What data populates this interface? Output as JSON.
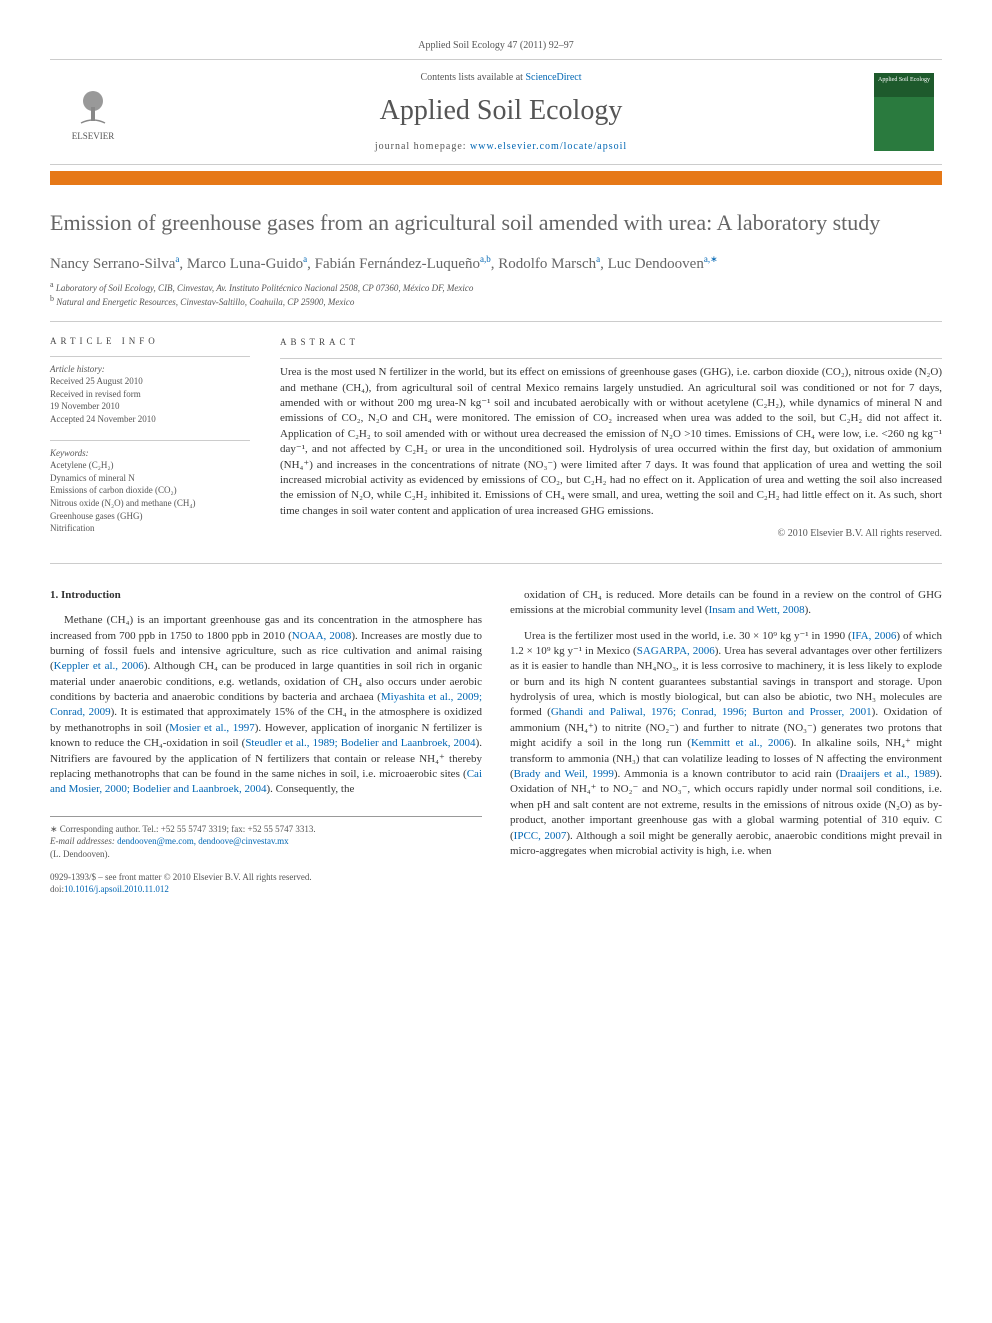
{
  "header": {
    "citation": "Applied Soil Ecology 47 (2011) 92–97"
  },
  "masthead": {
    "contents_prefix": "Contents lists available at ",
    "contents_link": "ScienceDirect",
    "journal": "Applied Soil Ecology",
    "homepage_prefix": "journal homepage: ",
    "homepage_link": "www.elsevier.com/locate/apsoil",
    "publisher_name": "ELSEVIER",
    "cover_label": "Applied Soil Ecology"
  },
  "article": {
    "title": "Emission of greenhouse gases from an agricultural soil amended with urea: A laboratory study",
    "authors_html": "Nancy Serrano-Silva<sup>a</sup>, Marco Luna-Guido<sup>a</sup>, Fabián Fernández-Luqueño<sup>a,b</sup>, Rodolfo Marsch<sup>a</sup>, Luc Dendooven<sup>a,∗</sup>",
    "affiliations": [
      {
        "mark": "a",
        "text": "Laboratory of Soil Ecology, CIB, Cinvestav, Av. Instituto Politécnico Nacional 2508, CP 07360, México DF, Mexico"
      },
      {
        "mark": "b",
        "text": "Natural and Energetic Resources, Cinvestav-Saltillo, Coahuila, CP 25900, Mexico"
      }
    ]
  },
  "info": {
    "label": "ARTICLE INFO",
    "history_label": "Article history:",
    "history": [
      "Received 25 August 2010",
      "Received in revised form",
      "19 November 2010",
      "Accepted 24 November 2010"
    ],
    "keywords_label": "Keywords:",
    "keywords": [
      "Acetylene (C₂H₂)",
      "Dynamics of mineral N",
      "Emissions of carbon dioxide (CO₂)",
      "Nitrous oxide (N₂O) and methane (CH₄)",
      "Greenhouse gases (GHG)",
      "Nitrification"
    ]
  },
  "abstract": {
    "label": "ABSTRACT",
    "text": "Urea is the most used N fertilizer in the world, but its effect on emissions of greenhouse gases (GHG), i.e. carbon dioxide (CO₂), nitrous oxide (N₂O) and methane (CH₄), from agricultural soil of central Mexico remains largely unstudied. An agricultural soil was conditioned or not for 7 days, amended with or without 200 mg urea-N kg⁻¹ soil and incubated aerobically with or without acetylene (C₂H₂), while dynamics of mineral N and emissions of CO₂, N₂O and CH₄ were monitored. The emission of CO₂ increased when urea was added to the soil, but C₂H₂ did not affect it. Application of C₂H₂ to soil amended with or without urea decreased the emission of N₂O >10 times. Emissions of CH₄ were low, i.e. <260 ng kg⁻¹ day⁻¹, and not affected by C₂H₂ or urea in the unconditioned soil. Hydrolysis of urea occurred within the first day, but oxidation of ammonium (NH₄⁺) and increases in the concentrations of nitrate (NO₃⁻) were limited after 7 days. It was found that application of urea and wetting the soil increased microbial activity as evidenced by emissions of CO₂, but C₂H₂ had no effect on it. Application of urea and wetting the soil also increased the emission of N₂O, while C₂H₂ inhibited it. Emissions of CH₄ were small, and urea, wetting the soil and C₂H₂ had little effect on it. As such, short time changes in soil water content and application of urea increased GHG emissions.",
    "copyright": "© 2010 Elsevier B.V. All rights reserved."
  },
  "body": {
    "intro_heading": "1. Introduction",
    "col1_p1_html": "Methane (CH₄) is an important greenhouse gas and its concentration in the atmosphere has increased from 700 ppb in 1750 to 1800 ppb in 2010 (<a href='#'>NOAA, 2008</a>). Increases are mostly due to burning of fossil fuels and intensive agriculture, such as rice cultivation and animal raising (<a href='#'>Keppler et al., 2006</a>). Although CH₄ can be produced in large quantities in soil rich in organic material under anaerobic conditions, e.g. wetlands, oxidation of CH₄ also occurs under aerobic conditions by bacteria and anaerobic conditions by bacteria and archaea (<a href='#'>Miyashita et al., 2009; Conrad, 2009</a>). It is estimated that approximately 15% of the CH₄ in the atmosphere is oxidized by methanotrophs in soil (<a href='#'>Mosier et al., 1997</a>). However, application of inorganic N fertilizer is known to reduce the CH₄-oxidation in soil (<a href='#'>Steudler et al., 1989; Bodelier and Laanbroek, 2004</a>). Nitrifiers are favoured by the application of N fertilizers that contain or release NH₄⁺ thereby replacing methanotrophs that can be found in the same niches in soil, i.e. microaerobic sites (<a href='#'>Cai and Mosier, 2000; Bodelier and Laanbroek, 2004</a>). Consequently, the",
    "col2_p1_html": "oxidation of CH₄ is reduced. More details can be found in a review on the control of GHG emissions at the microbial community level (<a href='#'>Insam and Wett, 2008</a>).",
    "col2_p2_html": "Urea is the fertilizer most used in the world, i.e. 30 × 10⁹ kg y⁻¹ in 1990 (<a href='#'>IFA, 2006</a>) of which 1.2 × 10⁹ kg y⁻¹ in Mexico (<a href='#'>SAGARPA, 2006</a>). Urea has several advantages over other fertilizers as it is easier to handle than NH₄NO₃, it is less corrosive to machinery, it is less likely to explode or burn and its high N content guarantees substantial savings in transport and storage. Upon hydrolysis of urea, which is mostly biological, but can also be abiotic, two NH₃ molecules are formed (<a href='#'>Ghandi and Paliwal, 1976; Conrad, 1996; Burton and Prosser, 2001</a>). Oxidation of ammonium (NH₄⁺) to nitrite (NO₂⁻) and further to nitrate (NO₃⁻) generates two protons that might acidify a soil in the long run (<a href='#'>Kemmitt et al., 2006</a>). In alkaline soils, NH₄⁺ might transform to ammonia (NH₃) that can volatilize leading to losses of N affecting the environment (<a href='#'>Brady and Weil, 1999</a>). Ammonia is a known contributor to acid rain (<a href='#'>Draaijers et al., 1989</a>). Oxidation of NH₄⁺ to NO₂⁻ and NO₃⁻, which occurs rapidly under normal soil conditions, i.e. when pH and salt content are not extreme, results in the emissions of nitrous oxide (N₂O) as by-product, another important greenhouse gas with a global warming potential of 310 equiv. C (<a href='#'>IPCC, 2007</a>). Although a soil might be generally aerobic, anaerobic conditions might prevail in micro-aggregates when microbial activity is high, i.e. when"
  },
  "footnotes": {
    "corr": "∗ Corresponding author. Tel.: +52 55 5747 3319; fax: +52 55 5747 3313.",
    "email_label": "E-mail addresses:",
    "emails": "dendooven@me.com, dendoove@cinvestav.mx",
    "email_name": "(L. Dendooven)."
  },
  "footer": {
    "issn": "0929-1393/$ – see front matter © 2010 Elsevier B.V. All rights reserved.",
    "doi_label": "doi:",
    "doi": "10.1016/j.apsoil.2010.11.012"
  },
  "colors": {
    "link": "#0066b3",
    "orange_bar": "#e67817",
    "cover_bg": "#2a7a3e",
    "text_grey": "#555"
  }
}
